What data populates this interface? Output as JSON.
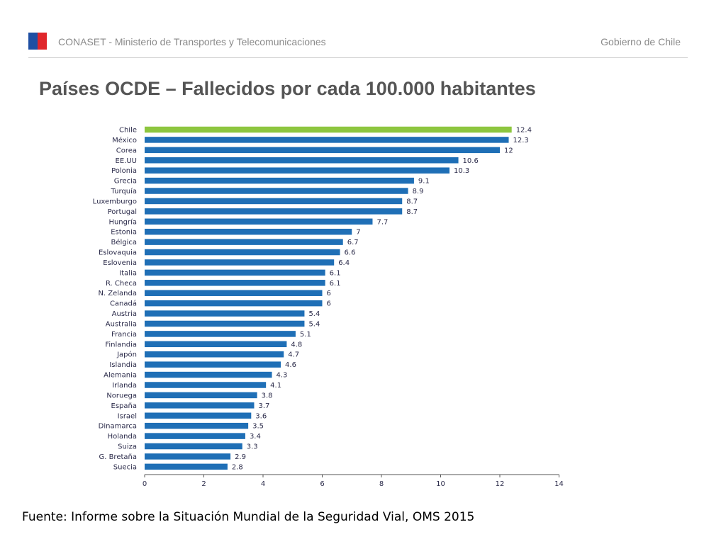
{
  "header": {
    "left_text": "CONASET - Ministerio de Transportes y Telecomunicaciones",
    "right_text": "Gobierno de Chile"
  },
  "title": "Países OCDE – Fallecidos por cada 100.000 habitantes",
  "source": "Fuente: Informe sobre la Situación Mundial de la Seguridad Vial, OMS 2015",
  "colors": {
    "highlight": "#8dc63f",
    "bar": "#1f6fb6"
  },
  "chart_data": {
    "type": "bar",
    "orientation": "horizontal",
    "categories": [
      "Chile",
      "México",
      "Corea",
      "EE.UU",
      "Polonia",
      "Grecia",
      "Turquía",
      "Luxemburgo",
      "Portugal",
      "Hungría",
      "Estonia",
      "Bélgica",
      "Eslovaquia",
      "Eslovenia",
      "Italia",
      "R. Checa",
      "N. Zelanda",
      "Canadá",
      "Austria",
      "Australia",
      "Francia",
      "Finlandia",
      "Japón",
      "Islandia",
      "Alemania",
      "Irlanda",
      "Noruega",
      "España",
      "Israel",
      "Dinamarca",
      "Holanda",
      "Suiza",
      "G. Bretaña",
      "Suecia"
    ],
    "values": [
      12.4,
      12.3,
      12,
      10.6,
      10.3,
      9.1,
      8.9,
      8.7,
      8.7,
      7.7,
      7,
      6.7,
      6.6,
      6.4,
      6.1,
      6.1,
      6,
      6,
      5.4,
      5.4,
      5.1,
      4.8,
      4.7,
      4.6,
      4.3,
      4.1,
      3.8,
      3.7,
      3.6,
      3.5,
      3.4,
      3.3,
      2.9,
      2.8
    ],
    "value_labels": [
      "12.4",
      "12.3",
      "12",
      "10.6",
      "10.3",
      "9.1",
      "8.9",
      "8.7",
      "8.7",
      "7.7",
      "7",
      "6.7",
      "6.6",
      "6.4",
      "6.1",
      "6.1",
      "6",
      "6",
      "5.4",
      "5.4",
      "5.1",
      "4.8",
      "4.7",
      "4.6",
      "4.3",
      "4.1",
      "3.8",
      "3.7",
      "3.6",
      "3.5",
      "3.4",
      "3.3",
      "2.9",
      "2.8"
    ],
    "highlight_category": "Chile",
    "xlim": [
      0,
      14
    ],
    "xticks": [
      "0",
      "2",
      "4",
      "6",
      "8",
      "10",
      "12",
      "14"
    ],
    "grid": false
  }
}
